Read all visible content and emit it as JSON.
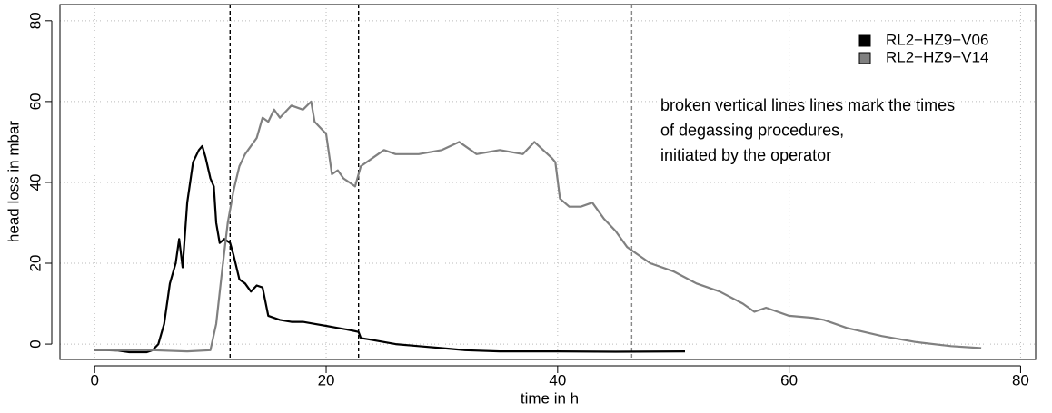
{
  "chart_data": {
    "type": "line",
    "xlabel": "time in h",
    "ylabel": "head loss in mbar",
    "xlim": [
      -3,
      81.3
    ],
    "ylim": [
      -3.8,
      84
    ],
    "xticks": [
      0,
      20,
      40,
      60,
      80
    ],
    "yticks": [
      0,
      20,
      40,
      60,
      80
    ],
    "grid": true,
    "legend": "top right",
    "annotation": [
      "broken vertical lines lines mark the times",
      "of degassing procedures,",
      "initiated by the operator"
    ],
    "vlines": [
      {
        "x": 11.7,
        "color": "#000000"
      },
      {
        "x": 22.8,
        "color": "#000000"
      },
      {
        "x": 46.4,
        "color": "#888888"
      }
    ],
    "series": [
      {
        "name": "RL2−HZ9−V06",
        "color": "#000000",
        "x": [
          0,
          1,
          2,
          3,
          4,
          4.5,
          5,
          5.5,
          6,
          6.5,
          7,
          7.3,
          7.6,
          8,
          8.5,
          9,
          9.3,
          9.6,
          10,
          10.3,
          10.5,
          10.8,
          11.2,
          11.7,
          12,
          12.5,
          13,
          13.5,
          14,
          14.5,
          15,
          16,
          17,
          18,
          19,
          20,
          21,
          22,
          22.8,
          23,
          24,
          26,
          28,
          30,
          32,
          35,
          40,
          45,
          51
        ],
        "values": [
          -1.5,
          -1.5,
          -1.6,
          -2,
          -2,
          -2,
          -1.5,
          0,
          5,
          15,
          20,
          26,
          19,
          35,
          45,
          48,
          49,
          46,
          41,
          39,
          30,
          25,
          26,
          25,
          22,
          16,
          15,
          13,
          14.5,
          14,
          7,
          6,
          5.5,
          5.5,
          5,
          4.5,
          4,
          3.5,
          3,
          1.5,
          1,
          0,
          -0.5,
          -1,
          -1.5,
          -1.8,
          -1.8,
          -1.9,
          -1.8
        ]
      },
      {
        "name": "RL2−HZ9−V14",
        "color": "#808080",
        "x": [
          0,
          5,
          8,
          10,
          10.5,
          11,
          11.5,
          12,
          12.5,
          13,
          14,
          14.5,
          15,
          15.5,
          16,
          17,
          18,
          18.7,
          19,
          20,
          20.5,
          21,
          21.5,
          22,
          22.5,
          23,
          24,
          25,
          26,
          28,
          30,
          31.5,
          33,
          35,
          37,
          38,
          39.5,
          39.8,
          40.2,
          41,
          42,
          43,
          44,
          45,
          46,
          47,
          48,
          50,
          52,
          54,
          56,
          57,
          58,
          60,
          62,
          63,
          65,
          68,
          71,
          74,
          76.6
        ],
        "values": [
          -1.5,
          -1.5,
          -1.8,
          -1.5,
          5,
          18,
          30,
          38,
          44,
          47,
          51,
          56,
          55,
          58,
          56,
          59,
          58,
          60,
          55,
          52,
          42,
          43,
          41,
          40,
          39,
          44,
          46,
          48,
          47,
          47,
          48,
          50,
          47,
          48,
          47,
          50,
          46,
          45,
          36,
          34,
          34,
          35,
          31,
          28,
          24,
          22,
          20,
          18,
          15,
          13,
          10,
          8,
          9,
          7,
          6.5,
          6,
          4,
          2,
          0.5,
          -0.5,
          -1
        ]
      }
    ]
  }
}
